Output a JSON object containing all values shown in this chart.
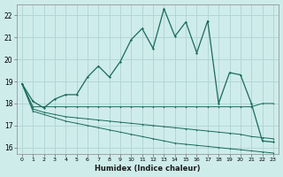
{
  "xlabel": "Humidex (Indice chaleur)",
  "bg_color": "#ceecea",
  "grid_color": "#aed4d2",
  "line_color": "#1a6b5a",
  "xlim": [
    -0.5,
    23.5
  ],
  "ylim": [
    15.7,
    22.5
  ],
  "yticks": [
    16,
    17,
    18,
    19,
    20,
    21,
    22
  ],
  "xticks": [
    0,
    1,
    2,
    3,
    4,
    5,
    6,
    7,
    8,
    9,
    10,
    11,
    12,
    13,
    14,
    15,
    16,
    17,
    18,
    19,
    20,
    21,
    22,
    23
  ],
  "main_line": {
    "x": [
      0,
      1,
      2,
      3,
      4,
      5,
      6,
      7,
      8,
      9,
      10,
      11,
      12,
      13,
      14,
      15,
      16,
      17,
      18,
      19,
      20,
      21,
      22,
      23
    ],
    "y": [
      18.9,
      18.1,
      17.8,
      18.2,
      18.4,
      18.4,
      19.2,
      19.7,
      19.2,
      19.9,
      20.9,
      21.4,
      20.5,
      22.3,
      21.05,
      21.7,
      20.3,
      21.75,
      18.0,
      19.4,
      19.3,
      18.0,
      16.3,
      16.25
    ]
  },
  "line_flat": {
    "x": [
      0,
      1,
      2,
      3,
      4,
      5,
      6,
      7,
      8,
      9,
      10,
      11,
      12,
      13,
      14,
      15,
      16,
      17,
      18,
      19,
      20,
      21,
      22,
      23
    ],
    "y": [
      18.9,
      17.85,
      17.85,
      17.85,
      17.85,
      17.85,
      17.85,
      17.85,
      17.85,
      17.85,
      17.85,
      17.85,
      17.85,
      17.85,
      17.85,
      17.85,
      17.85,
      17.85,
      17.85,
      17.85,
      17.85,
      17.85,
      18.0,
      18.0
    ]
  },
  "line_mid": {
    "x": [
      0,
      1,
      2,
      3,
      4,
      5,
      6,
      7,
      8,
      9,
      10,
      11,
      12,
      13,
      14,
      15,
      16,
      17,
      18,
      19,
      20,
      21,
      22,
      23
    ],
    "y": [
      18.9,
      17.75,
      17.6,
      17.5,
      17.4,
      17.35,
      17.3,
      17.25,
      17.2,
      17.15,
      17.1,
      17.05,
      17.0,
      16.95,
      16.9,
      16.85,
      16.8,
      16.75,
      16.7,
      16.65,
      16.6,
      16.5,
      16.45,
      16.4
    ]
  },
  "line_low": {
    "x": [
      0,
      1,
      2,
      3,
      4,
      5,
      6,
      7,
      8,
      9,
      10,
      11,
      12,
      13,
      14,
      15,
      16,
      17,
      18,
      19,
      20,
      21,
      22,
      23
    ],
    "y": [
      18.9,
      17.65,
      17.5,
      17.35,
      17.2,
      17.1,
      17.0,
      16.9,
      16.8,
      16.7,
      16.6,
      16.5,
      16.4,
      16.3,
      16.2,
      16.15,
      16.1,
      16.05,
      16.0,
      15.95,
      15.9,
      15.85,
      15.8,
      15.75
    ]
  }
}
